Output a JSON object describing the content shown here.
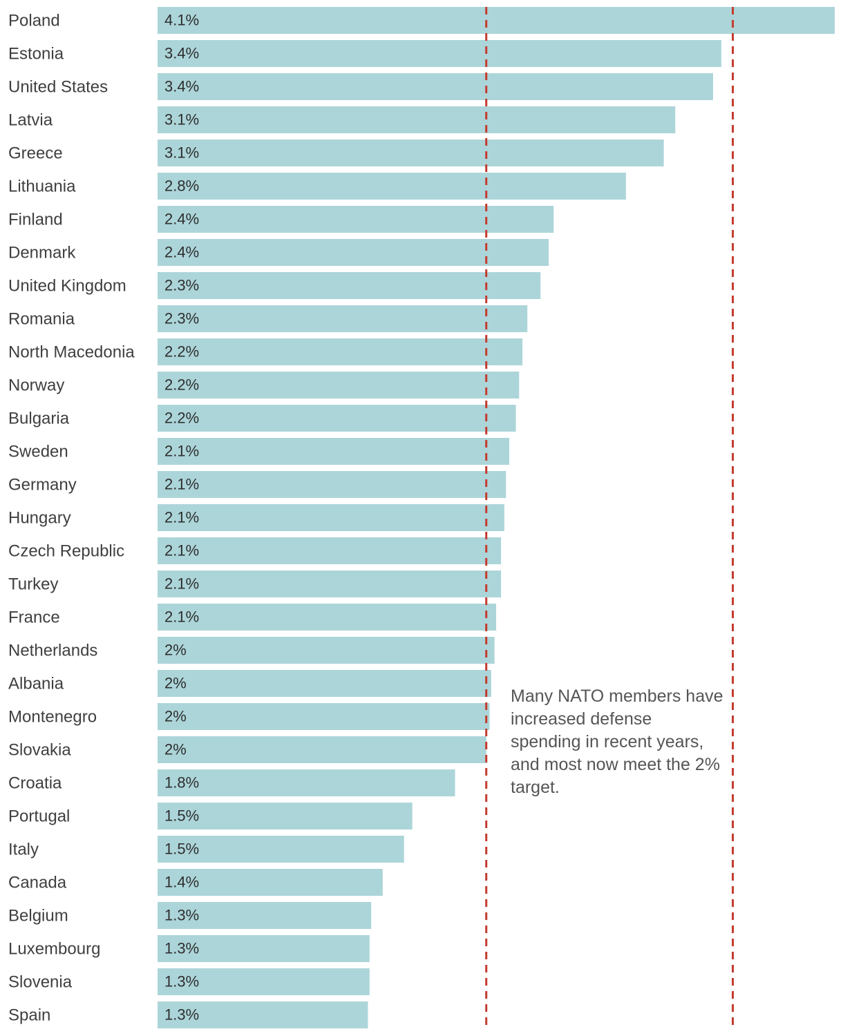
{
  "chart_data": {
    "type": "bar",
    "orientation": "horizontal",
    "title": "",
    "xlabel": "",
    "ylabel": "",
    "unit": "% of GDP",
    "xlim": [
      0,
      4.12
    ],
    "reference_lines": [
      2,
      3.5
    ],
    "categories": [
      "Poland",
      "Estonia",
      "United States",
      "Latvia",
      "Greece",
      "Lithuania",
      "Finland",
      "Denmark",
      "United Kingdom",
      "Romania",
      "North Macedonia",
      "Norway",
      "Bulgaria",
      "Sweden",
      "Germany",
      "Hungary",
      "Czech Republic",
      "Turkey",
      "France",
      "Netherlands",
      "Albania",
      "Montenegro",
      "Slovakia",
      "Croatia",
      "Portugal",
      "Italy",
      "Canada",
      "Belgium",
      "Luxembourg",
      "Slovenia",
      "Spain"
    ],
    "values": [
      4.12,
      3.43,
      3.38,
      3.15,
      3.08,
      2.85,
      2.41,
      2.38,
      2.33,
      2.25,
      2.22,
      2.2,
      2.18,
      2.14,
      2.12,
      2.11,
      2.09,
      2.09,
      2.06,
      2.05,
      2.03,
      2.02,
      2.0,
      1.81,
      1.55,
      1.5,
      1.37,
      1.3,
      1.29,
      1.29,
      1.28
    ],
    "value_labels": [
      "4.1%",
      "3.4%",
      "3.4%",
      "3.1%",
      "3.1%",
      "2.8%",
      "2.4%",
      "2.4%",
      "2.3%",
      "2.3%",
      "2.2%",
      "2.2%",
      "2.2%",
      "2.1%",
      "2.1%",
      "2.1%",
      "2.1%",
      "2.1%",
      "2.1%",
      "2%",
      "2%",
      "2%",
      "2%",
      "1.8%",
      "1.5%",
      "1.5%",
      "1.4%",
      "1.3%",
      "1.3%",
      "1.3%",
      "1.3%"
    ],
    "annotation": "Many NATO members have increased defense spending in recent years, and most now meet the 2% target."
  },
  "colors": {
    "bar": "#acd5d9",
    "target_line": "#c33b2e",
    "label_text": "#3f3f3f",
    "annotation_text": "#555555"
  }
}
